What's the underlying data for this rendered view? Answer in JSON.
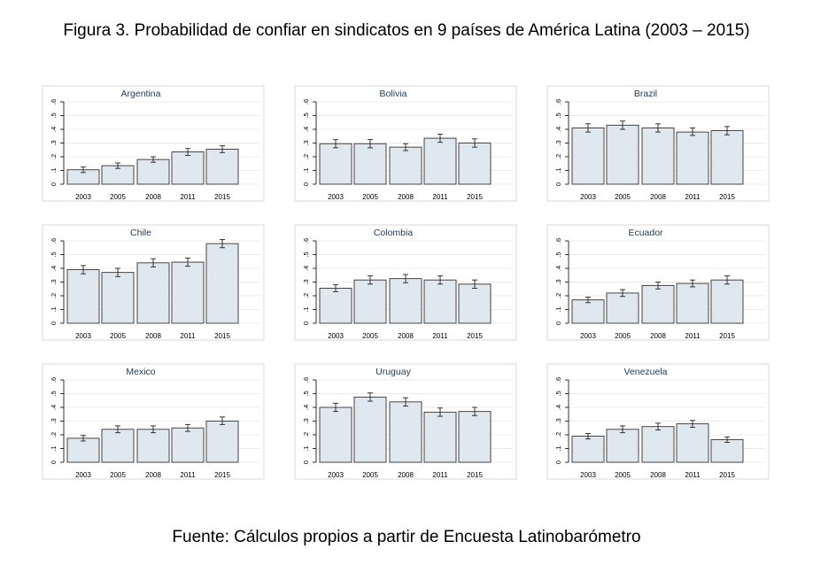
{
  "figure": {
    "title": "Figura 3. Probabilidad de confiar en sindicatos en 9 países de América Latina (2003 – 2015)",
    "source": "Fuente: Cálculos propios a partir de Encuesta Latinobarómetro"
  },
  "colors": {
    "bar_fill": "#dfe7ef",
    "bar_stroke": "#333333",
    "grid": "#e6e6e6",
    "panel_border": "#cfcfcf",
    "title_text": "#1f3a55"
  },
  "chart_data": [
    {
      "type": "bar",
      "title": "Argentina",
      "categories": [
        "2003",
        "2005",
        "2008",
        "2011",
        "2015"
      ],
      "values": [
        0.105,
        0.135,
        0.18,
        0.235,
        0.255
      ],
      "error_low": [
        0.085,
        0.115,
        0.16,
        0.21,
        0.23
      ],
      "error_high": [
        0.125,
        0.155,
        0.2,
        0.26,
        0.28
      ],
      "yticks": [
        "0",
        ".1",
        ".2",
        ".3",
        ".4",
        ".5",
        ".6"
      ],
      "ylim": [
        0,
        0.6
      ],
      "grid": true
    },
    {
      "type": "bar",
      "title": "Bolivia",
      "categories": [
        "2003",
        "2005",
        "2008",
        "2011",
        "2015"
      ],
      "values": [
        0.295,
        0.295,
        0.27,
        0.335,
        0.3
      ],
      "error_low": [
        0.265,
        0.265,
        0.245,
        0.305,
        0.27
      ],
      "error_high": [
        0.325,
        0.325,
        0.295,
        0.365,
        0.33
      ],
      "yticks": [
        "0",
        ".1",
        ".2",
        ".3",
        ".4",
        ".5",
        ".6"
      ],
      "ylim": [
        0,
        0.6
      ],
      "grid": true
    },
    {
      "type": "bar",
      "title": "Brazil",
      "categories": [
        "2003",
        "2005",
        "2008",
        "2011",
        "2015"
      ],
      "values": [
        0.41,
        0.43,
        0.41,
        0.38,
        0.39
      ],
      "error_low": [
        0.38,
        0.4,
        0.38,
        0.355,
        0.36
      ],
      "error_high": [
        0.44,
        0.46,
        0.44,
        0.41,
        0.42
      ],
      "yticks": [
        "0",
        ".1",
        ".2",
        ".3",
        ".4",
        ".5",
        ".6"
      ],
      "ylim": [
        0,
        0.6
      ],
      "grid": true
    },
    {
      "type": "bar",
      "title": "Chile",
      "categories": [
        "2003",
        "2005",
        "2008",
        "2011",
        "2015"
      ],
      "values": [
        0.39,
        0.37,
        0.44,
        0.445,
        0.58
      ],
      "error_low": [
        0.36,
        0.34,
        0.41,
        0.415,
        0.55
      ],
      "error_high": [
        0.42,
        0.4,
        0.47,
        0.475,
        0.61
      ],
      "yticks": [
        "0",
        ".1",
        ".2",
        ".3",
        ".4",
        ".5",
        ".6"
      ],
      "ylim": [
        0,
        0.6
      ],
      "grid": true
    },
    {
      "type": "bar",
      "title": "Colombia",
      "categories": [
        "2003",
        "2005",
        "2008",
        "2011",
        "2015"
      ],
      "values": [
        0.255,
        0.315,
        0.325,
        0.315,
        0.285
      ],
      "error_low": [
        0.23,
        0.285,
        0.295,
        0.285,
        0.255
      ],
      "error_high": [
        0.28,
        0.345,
        0.355,
        0.345,
        0.315
      ],
      "yticks": [
        "0",
        ".1",
        ".2",
        ".3",
        ".4",
        ".5",
        ".6"
      ],
      "ylim": [
        0,
        0.6
      ],
      "grid": true
    },
    {
      "type": "bar",
      "title": "Ecuador",
      "categories": [
        "2003",
        "2005",
        "2008",
        "2011",
        "2015"
      ],
      "values": [
        0.17,
        0.22,
        0.275,
        0.29,
        0.315
      ],
      "error_low": [
        0.15,
        0.195,
        0.25,
        0.265,
        0.285
      ],
      "error_high": [
        0.19,
        0.245,
        0.3,
        0.315,
        0.345
      ],
      "yticks": [
        "0",
        ".1",
        ".2",
        ".3",
        ".4",
        ".5",
        ".6"
      ],
      "ylim": [
        0,
        0.6
      ],
      "grid": true
    },
    {
      "type": "bar",
      "title": "Mexico",
      "categories": [
        "2003",
        "2005",
        "2008",
        "2011",
        "2015"
      ],
      "values": [
        0.175,
        0.24,
        0.24,
        0.25,
        0.3
      ],
      "error_low": [
        0.155,
        0.215,
        0.215,
        0.225,
        0.275
      ],
      "error_high": [
        0.195,
        0.265,
        0.265,
        0.275,
        0.33
      ],
      "yticks": [
        "0",
        ".1",
        ".2",
        ".3",
        ".4",
        ".5",
        ".6"
      ],
      "ylim": [
        0,
        0.6
      ],
      "grid": true
    },
    {
      "type": "bar",
      "title": "Uruguay",
      "categories": [
        "2003",
        "2005",
        "2008",
        "2011",
        "2015"
      ],
      "values": [
        0.4,
        0.475,
        0.44,
        0.365,
        0.37
      ],
      "error_low": [
        0.37,
        0.445,
        0.41,
        0.335,
        0.34
      ],
      "error_high": [
        0.43,
        0.505,
        0.47,
        0.395,
        0.4
      ],
      "yticks": [
        "0",
        ".1",
        ".2",
        ".3",
        ".4",
        ".5",
        ".6"
      ],
      "ylim": [
        0,
        0.6
      ],
      "grid": true
    },
    {
      "type": "bar",
      "title": "Venezuela",
      "categories": [
        "2003",
        "2005",
        "2008",
        "2011",
        "2015"
      ],
      "values": [
        0.19,
        0.24,
        0.26,
        0.28,
        0.165
      ],
      "error_low": [
        0.17,
        0.215,
        0.235,
        0.255,
        0.145
      ],
      "error_high": [
        0.21,
        0.265,
        0.285,
        0.305,
        0.185
      ],
      "yticks": [
        "0",
        ".1",
        ".2",
        ".3",
        ".4",
        ".5",
        ".6"
      ],
      "ylim": [
        0,
        0.6
      ],
      "grid": true
    }
  ]
}
